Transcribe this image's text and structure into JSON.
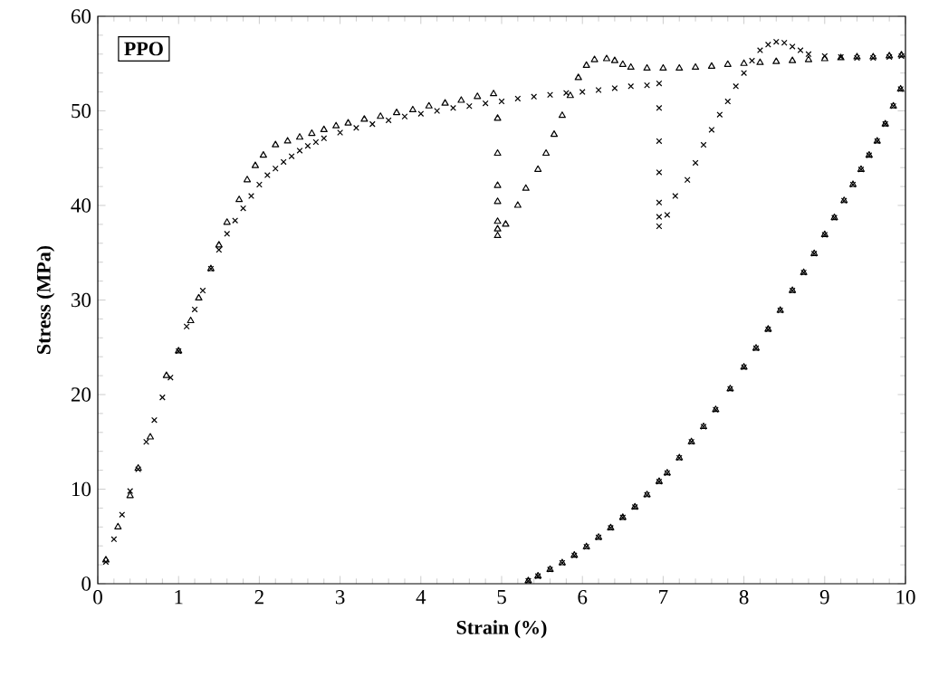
{
  "chart_data": {
    "type": "scatter",
    "xlabel": "Strain (%)",
    "ylabel": "Stress (MPa)",
    "annotations": [
      "PPO"
    ],
    "xlim": [
      0,
      10
    ],
    "ylim": [
      0,
      60
    ],
    "xticks": [
      0,
      1,
      2,
      3,
      4,
      5,
      6,
      7,
      8,
      9,
      10
    ],
    "yticks": [
      0,
      10,
      20,
      30,
      40,
      50,
      60
    ],
    "series": [
      {
        "color": "#000000",
        "marker": "triangle",
        "x": [
          0.1,
          0.25,
          0.4,
          0.5,
          0.65,
          0.85,
          1.0,
          1.15,
          1.25,
          1.4,
          1.5,
          1.6,
          1.75,
          1.85,
          1.95,
          2.05,
          2.2,
          2.35,
          2.5,
          2.65,
          2.8,
          2.95,
          3.1,
          3.3,
          3.5,
          3.7,
          3.9,
          4.1,
          4.3,
          4.5,
          4.7,
          4.9,
          4.95,
          4.95,
          4.95,
          4.95,
          4.95,
          4.95,
          4.95,
          5.05,
          5.2,
          5.3,
          5.45,
          5.55,
          5.65,
          5.75,
          5.85,
          5.95,
          6.05,
          6.15,
          6.3,
          6.4,
          6.5,
          6.6,
          6.8,
          7.0,
          7.2,
          7.4,
          7.6,
          7.8,
          8.0,
          8.2,
          8.4,
          8.6,
          8.8,
          9.0,
          9.2,
          9.4,
          9.6,
          9.8,
          9.95,
          9.94,
          9.85,
          9.75,
          9.65,
          9.55,
          9.45,
          9.35,
          9.24,
          9.12,
          9.0,
          8.87,
          8.74,
          8.6,
          8.45,
          8.3,
          8.15,
          8.0,
          7.83,
          7.65,
          7.5,
          7.35,
          7.2,
          7.05,
          6.95,
          6.8,
          6.65,
          6.5,
          6.35,
          6.2,
          6.05,
          5.9,
          5.75,
          5.6,
          5.45,
          5.33
        ],
        "values": [
          2.5,
          6.0,
          9.3,
          12.2,
          15.5,
          22.0,
          24.6,
          27.8,
          30.2,
          33.3,
          35.8,
          38.2,
          40.6,
          42.7,
          44.2,
          45.3,
          46.4,
          46.8,
          47.2,
          47.6,
          48.0,
          48.4,
          48.7,
          49.1,
          49.4,
          49.8,
          50.1,
          50.5,
          50.8,
          51.1,
          51.5,
          51.8,
          49.2,
          45.5,
          42.1,
          40.4,
          38.3,
          37.5,
          36.8,
          38.0,
          40.0,
          41.8,
          43.8,
          45.5,
          47.5,
          49.5,
          51.6,
          53.5,
          54.8,
          55.4,
          55.5,
          55.3,
          54.9,
          54.6,
          54.5,
          54.5,
          54.5,
          54.6,
          54.7,
          54.9,
          55.0,
          55.1,
          55.2,
          55.3,
          55.4,
          55.5,
          55.6,
          55.7,
          55.7,
          55.8,
          55.9,
          52.3,
          50.5,
          48.6,
          46.8,
          45.3,
          43.8,
          42.2,
          40.5,
          38.7,
          36.9,
          34.9,
          32.9,
          31.0,
          28.9,
          26.9,
          24.9,
          22.9,
          20.6,
          18.4,
          16.6,
          15.0,
          13.3,
          11.7,
          10.8,
          9.4,
          8.1,
          7.0,
          5.9,
          4.9,
          3.9,
          3.0,
          2.2,
          1.5,
          0.8,
          0.3
        ]
      },
      {
        "color": "#000000",
        "marker": "cross",
        "x": [
          0.1,
          0.2,
          0.3,
          0.4,
          0.5,
          0.6,
          0.7,
          0.8,
          0.9,
          1.0,
          1.1,
          1.2,
          1.3,
          1.4,
          1.5,
          1.6,
          1.7,
          1.8,
          1.9,
          2.0,
          2.1,
          2.2,
          2.3,
          2.4,
          2.5,
          2.6,
          2.7,
          2.8,
          3.0,
          3.2,
          3.4,
          3.6,
          3.8,
          4.0,
          4.2,
          4.4,
          4.6,
          4.8,
          5.0,
          5.2,
          5.4,
          5.6,
          5.8,
          6.0,
          6.2,
          6.4,
          6.6,
          6.8,
          6.95,
          6.95,
          6.95,
          6.95,
          6.95,
          6.95,
          6.95,
          7.05,
          7.15,
          7.3,
          7.4,
          7.5,
          7.6,
          7.7,
          7.8,
          7.9,
          8.0,
          8.1,
          8.2,
          8.3,
          8.4,
          8.5,
          8.6,
          8.7,
          8.8,
          9.0,
          9.2,
          9.4,
          9.6,
          9.8,
          9.95,
          9.94,
          9.85,
          9.75,
          9.65,
          9.55,
          9.45,
          9.35,
          9.24,
          9.12,
          9.0,
          8.87,
          8.74,
          8.6,
          8.45,
          8.3,
          8.15,
          8.0,
          7.83,
          7.65,
          7.5,
          7.35,
          7.2,
          7.05,
          6.95,
          6.8,
          6.65,
          6.5,
          6.35,
          6.2,
          6.05,
          5.9,
          5.75,
          5.6,
          5.45,
          5.33
        ],
        "values": [
          2.3,
          4.7,
          7.3,
          9.8,
          12.1,
          15.0,
          17.3,
          19.7,
          21.8,
          24.6,
          27.2,
          29.0,
          31.0,
          33.3,
          35.3,
          37.0,
          38.4,
          39.7,
          41.0,
          42.2,
          43.2,
          43.9,
          44.6,
          45.2,
          45.8,
          46.3,
          46.7,
          47.1,
          47.7,
          48.2,
          48.6,
          49.0,
          49.4,
          49.7,
          50.0,
          50.3,
          50.5,
          50.8,
          51.0,
          51.3,
          51.5,
          51.7,
          51.9,
          52.0,
          52.2,
          52.4,
          52.6,
          52.7,
          52.9,
          50.3,
          46.8,
          43.5,
          40.3,
          38.8,
          37.8,
          39.0,
          41.0,
          42.7,
          44.5,
          46.4,
          48.0,
          49.6,
          51.0,
          52.6,
          54.0,
          55.3,
          56.4,
          57.0,
          57.3,
          57.2,
          56.8,
          56.4,
          56.0,
          55.8,
          55.7,
          55.6,
          55.6,
          55.7,
          55.8,
          52.3,
          50.5,
          48.6,
          46.8,
          45.3,
          43.8,
          42.2,
          40.5,
          38.7,
          36.9,
          34.9,
          32.9,
          31.0,
          28.9,
          26.9,
          24.9,
          22.9,
          20.6,
          18.4,
          16.6,
          15.0,
          13.3,
          11.7,
          10.8,
          9.4,
          8.1,
          7.0,
          5.9,
          4.9,
          3.9,
          3.0,
          2.2,
          1.5,
          0.8,
          0.3
        ]
      }
    ]
  }
}
